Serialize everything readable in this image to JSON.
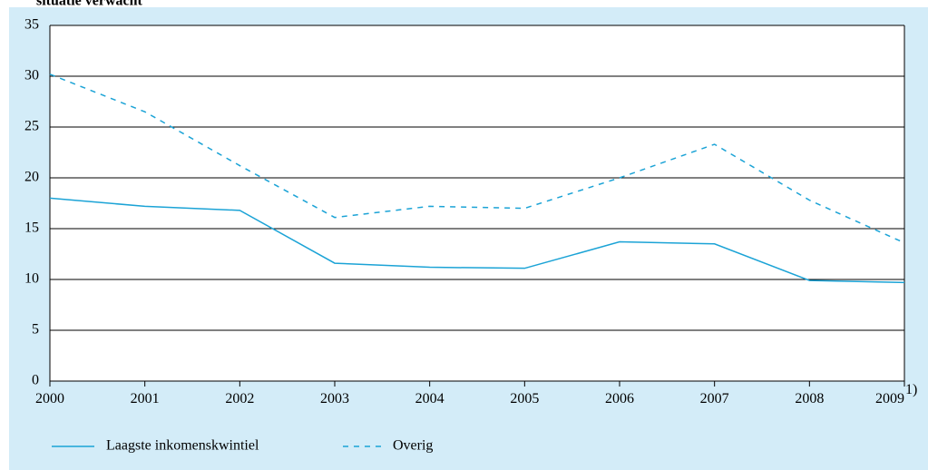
{
  "chart_data": {
    "type": "line",
    "title": "situatie verwacht",
    "categories": [
      "2000",
      "2001",
      "2002",
      "2003",
      "2004",
      "2005",
      "2006",
      "2007",
      "2008",
      "2009"
    ],
    "last_category_note": "1)",
    "series": [
      {
        "name": "Laagste inkomenskwintiel",
        "color": "#1ba3d6",
        "dash": "solid",
        "values": [
          18.0,
          17.2,
          16.8,
          11.6,
          11.2,
          11.1,
          13.7,
          13.5,
          9.9,
          9.7
        ]
      },
      {
        "name": "Overig",
        "color": "#1ba3d6",
        "dash": "dashed",
        "values": [
          30.2,
          26.5,
          21.2,
          16.1,
          17.2,
          17.0,
          20.0,
          23.3,
          17.8,
          13.6
        ]
      }
    ],
    "ylim": [
      0,
      35
    ],
    "yticks": [
      0,
      5,
      10,
      15,
      20,
      25,
      30,
      35
    ],
    "grid": true
  }
}
